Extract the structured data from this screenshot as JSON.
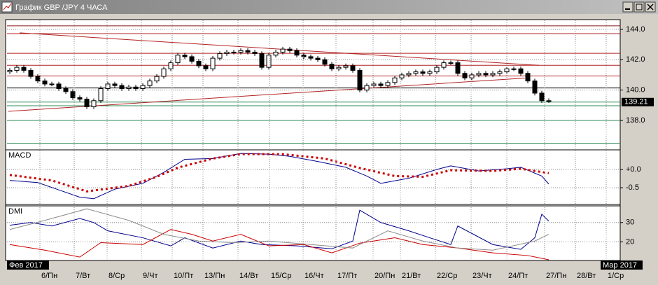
{
  "chart_data": [
    {
      "type": "candlestick",
      "title": "График GBP /JPY  4 ЧАСА",
      "xlim": [
        -0.4,
        87.2
      ],
      "ylim": [
        136.2,
        144.55
      ],
      "yticks": [
        {
          "value": 138,
          "label": "138.0"
        },
        {
          "value": 140,
          "label": "140.0"
        },
        {
          "value": 142,
          "label": "142.0"
        },
        {
          "value": 144,
          "label": "144.0"
        }
      ],
      "last_price": 139.21,
      "x": [
        0,
        1,
        2,
        3,
        4,
        5,
        6,
        7,
        8,
        9,
        10,
        11,
        12,
        13,
        14,
        15,
        16,
        17,
        18,
        19,
        20,
        21,
        22,
        23,
        24,
        25,
        26,
        27,
        28,
        29,
        30,
        31,
        32,
        33,
        34,
        35,
        36,
        37,
        38,
        39,
        40,
        41,
        42,
        43,
        44,
        45,
        46,
        47,
        48,
        49,
        50,
        51,
        52,
        53,
        54,
        55,
        56,
        57,
        58,
        59,
        60,
        61,
        62,
        63,
        64,
        65,
        66,
        67,
        68,
        69,
        70,
        71,
        72,
        73,
        74,
        75,
        76,
        77
      ],
      "open": [
        141.2,
        141.3,
        141.5,
        141.3,
        140.9,
        140.6,
        140.4,
        140.4,
        140.1,
        139.9,
        139.5,
        139.4,
        138.9,
        139.3,
        140.1,
        140.4,
        140.3,
        140.1,
        140.2,
        140.1,
        140.3,
        140.6,
        140.9,
        141.4,
        141.8,
        142.3,
        142.2,
        141.9,
        141.6,
        141.4,
        142.1,
        142.4,
        142.5,
        142.5,
        142.6,
        142.5,
        142.4,
        141.5,
        142.3,
        142.5,
        142.7,
        142.6,
        142.3,
        142.2,
        142.1,
        142.0,
        141.7,
        141.4,
        141.5,
        141.6,
        141.3,
        140.0,
        140.3,
        140.4,
        140.3,
        140.5,
        140.8,
        141.0,
        141.1,
        141.2,
        141.1,
        141.2,
        141.5,
        141.8,
        141.8,
        141.1,
        140.8,
        141.0,
        141.1,
        141.0,
        141.1,
        141.2,
        141.4,
        141.4,
        141.1,
        140.6,
        139.8,
        139.3
      ],
      "high": [
        141.45,
        141.65,
        141.65,
        141.45,
        141.05,
        140.75,
        140.55,
        140.55,
        140.25,
        140.05,
        139.65,
        139.55,
        139.45,
        140.25,
        140.55,
        140.55,
        140.45,
        140.35,
        140.35,
        140.45,
        140.75,
        141.05,
        141.55,
        141.95,
        142.45,
        142.45,
        142.35,
        142.05,
        141.75,
        142.25,
        142.55,
        142.65,
        142.65,
        142.75,
        142.75,
        142.65,
        142.55,
        142.45,
        142.65,
        142.85,
        142.85,
        142.75,
        142.45,
        142.35,
        142.25,
        142.15,
        141.85,
        141.65,
        141.75,
        141.75,
        141.45,
        140.45,
        140.55,
        140.55,
        140.65,
        140.95,
        141.15,
        141.25,
        141.35,
        141.35,
        141.35,
        141.65,
        141.95,
        141.95,
        141.95,
        141.25,
        141.15,
        141.25,
        141.25,
        141.25,
        141.35,
        141.55,
        141.55,
        141.55,
        141.25,
        140.75,
        139.95,
        139.45
      ],
      "low": [
        141.05,
        141.15,
        141.15,
        140.75,
        140.45,
        140.25,
        140.25,
        139.95,
        139.75,
        139.35,
        139.25,
        138.75,
        138.75,
        139.15,
        139.95,
        140.15,
        139.95,
        139.95,
        139.95,
        139.95,
        140.15,
        140.45,
        140.75,
        141.25,
        141.65,
        142.05,
        141.75,
        141.45,
        141.25,
        141.25,
        141.95,
        142.25,
        142.35,
        142.35,
        142.35,
        142.25,
        141.35,
        141.35,
        142.15,
        142.35,
        142.45,
        142.15,
        142.05,
        141.95,
        141.85,
        141.55,
        141.25,
        141.25,
        141.35,
        141.15,
        139.85,
        139.85,
        140.15,
        140.15,
        140.15,
        140.35,
        140.65,
        140.85,
        140.95,
        140.95,
        140.95,
        141.05,
        141.35,
        141.65,
        140.95,
        140.65,
        140.65,
        140.85,
        140.85,
        140.85,
        140.95,
        141.05,
        141.25,
        140.95,
        140.45,
        139.65,
        139.15,
        139.15
      ],
      "close": [
        141.3,
        141.5,
        141.3,
        140.9,
        140.6,
        140.4,
        140.4,
        140.1,
        139.9,
        139.5,
        139.4,
        138.9,
        139.3,
        140.1,
        140.4,
        140.3,
        140.1,
        140.2,
        140.1,
        140.3,
        140.6,
        140.9,
        141.4,
        141.8,
        142.3,
        142.2,
        141.9,
        141.6,
        141.4,
        142.1,
        142.4,
        142.5,
        142.5,
        142.6,
        142.5,
        142.4,
        141.5,
        142.3,
        142.5,
        142.7,
        142.6,
        142.3,
        142.2,
        142.1,
        142.0,
        141.7,
        141.4,
        141.5,
        141.6,
        141.3,
        140.0,
        140.3,
        140.4,
        140.3,
        140.5,
        140.8,
        141.0,
        141.1,
        141.2,
        141.1,
        141.2,
        141.5,
        141.8,
        141.8,
        141.1,
        140.8,
        141.0,
        141.1,
        141.0,
        141.1,
        141.2,
        141.4,
        141.4,
        141.1,
        140.6,
        139.8,
        139.3,
        139.3
      ],
      "levels": [
        {
          "value": 144.23,
          "color": "#8b1a1a"
        },
        {
          "value": 143.72,
          "color": "#b22222"
        },
        {
          "value": 142.42,
          "color": "#b22222"
        },
        {
          "value": 141.63,
          "color": "#b22222"
        },
        {
          "value": 140.93,
          "color": "#b22222"
        },
        {
          "value": 140.14,
          "color": "#000000"
        },
        {
          "value": 139.21,
          "color": "#2e8b57"
        },
        {
          "value": 138.97,
          "color": "#2e8b57"
        },
        {
          "value": 138.0,
          "color": "#2e8b57"
        },
        {
          "value": 136.5,
          "color": "#2e8b57"
        }
      ],
      "trendlines": [
        {
          "x": [
            1.4,
            75.6
          ],
          "values": [
            143.77,
            141.63
          ],
          "color": "#b22222"
        },
        {
          "x": [
            -0.2,
            73.6
          ],
          "values": [
            138.6,
            140.79
          ],
          "color": "#b22222"
        }
      ]
    },
    {
      "type": "line",
      "title": "MACD",
      "xlim": [
        -0.4,
        87.2
      ],
      "ylim": [
        -0.94,
        0.5
      ],
      "yticks": [
        {
          "value": 0,
          "label": "+0.0"
        },
        {
          "value": -0.5,
          "label": "-0.5"
        }
      ],
      "series": [
        {
          "color": "#00008b",
          "x": [
            0,
            4,
            7,
            10,
            12,
            15,
            19,
            22,
            25,
            29,
            33,
            37,
            40,
            44,
            48,
            51,
            53,
            57,
            61,
            63,
            67,
            71,
            73,
            76,
            77
          ],
          "values": [
            -0.3,
            -0.36,
            -0.56,
            -0.76,
            -0.8,
            -0.54,
            -0.38,
            -0.08,
            0.28,
            0.3,
            0.44,
            0.42,
            0.36,
            0.22,
            0.06,
            -0.18,
            -0.38,
            -0.24,
            0.0,
            0.1,
            -0.04,
            0.02,
            0.06,
            -0.18,
            -0.4
          ]
        },
        {
          "color": "#cc0000",
          "style": "dotted",
          "x": [
            0,
            6,
            11,
            17,
            21,
            24,
            29,
            33,
            39,
            45,
            50,
            55,
            59,
            63,
            69,
            73,
            77
          ],
          "values": [
            -0.15,
            -0.3,
            -0.6,
            -0.45,
            -0.2,
            0.05,
            0.3,
            0.42,
            0.42,
            0.3,
            0.04,
            -0.18,
            -0.2,
            -0.02,
            -0.04,
            0.02,
            -0.1
          ]
        }
      ]
    },
    {
      "type": "line",
      "title": "DMI",
      "xlim": [
        -0.4,
        87.2
      ],
      "ylim": [
        10.7,
        37.9
      ],
      "yticks": [
        20,
        30
      ],
      "series": [
        {
          "color": "#00008b",
          "x": [
            0,
            3,
            6,
            10,
            12,
            14,
            19,
            23,
            25,
            29,
            33,
            36,
            41,
            46,
            49,
            50,
            53,
            57,
            60,
            63,
            64,
            69,
            73,
            75,
            76,
            77
          ],
          "values": [
            28.6,
            30.0,
            28.2,
            32.1,
            30.0,
            25.7,
            22.1,
            17.9,
            22.1,
            16.8,
            20.4,
            18.6,
            17.9,
            16.4,
            20.4,
            36.4,
            30.0,
            25.7,
            22.1,
            18.6,
            28.2,
            18.6,
            16.1,
            22.1,
            34.3,
            30.7
          ]
        },
        {
          "color": "#cc0000",
          "x": [
            0,
            5,
            10,
            13,
            19,
            23,
            26,
            29,
            33,
            37,
            42,
            46,
            50,
            55,
            59,
            64,
            69,
            74,
            77
          ],
          "values": [
            18.6,
            15.7,
            12.1,
            19.6,
            18.6,
            26.4,
            23.9,
            20.4,
            23.9,
            17.9,
            18.6,
            14.3,
            19.3,
            22.1,
            18.6,
            16.8,
            14.3,
            12.9,
            10.7
          ]
        },
        {
          "color": "#8c8c8c",
          "x": [
            0,
            5,
            11,
            17,
            22,
            27,
            32,
            37,
            43,
            49,
            54,
            59,
            64,
            69,
            75,
            77
          ],
          "values": [
            26.4,
            31.1,
            37.1,
            31.1,
            23.9,
            20.4,
            19.6,
            20.4,
            18.6,
            16.8,
            25.7,
            20.4,
            16.8,
            15.7,
            20.4,
            23.9
          ]
        }
      ],
      "xticks": [
        {
          "value": 4.3,
          "label": "6/Пн"
        },
        {
          "value": 9.2,
          "label": "7/Вт"
        },
        {
          "value": 13.9,
          "label": "8/Ср"
        },
        {
          "value": 18.8,
          "label": "9/Чт"
        },
        {
          "value": 23.2,
          "label": "10/Пт"
        },
        {
          "value": 27.6,
          "label": "13/Пн"
        },
        {
          "value": 32.6,
          "label": "14/Вт"
        },
        {
          "value": 37.1,
          "label": "15/Ср"
        },
        {
          "value": 41.9,
          "label": "16/Чт"
        },
        {
          "value": 46.6,
          "label": "17/Пт"
        },
        {
          "value": 51.9,
          "label": "20/Пн"
        },
        {
          "value": 55.8,
          "label": "21/Вт"
        },
        {
          "value": 60.8,
          "label": "22/Ср"
        },
        {
          "value": 65.9,
          "label": "23/Чт"
        },
        {
          "value": 71.0,
          "label": "24/Пт"
        },
        {
          "value": 76.4,
          "label": "27/Пн"
        },
        {
          "value": 80.8,
          "label": "28/Вт"
        },
        {
          "value": 85.2,
          "label": "1/Ср"
        }
      ],
      "period_labels": [
        "Фев 2017",
        "Мар 2017"
      ]
    }
  ]
}
